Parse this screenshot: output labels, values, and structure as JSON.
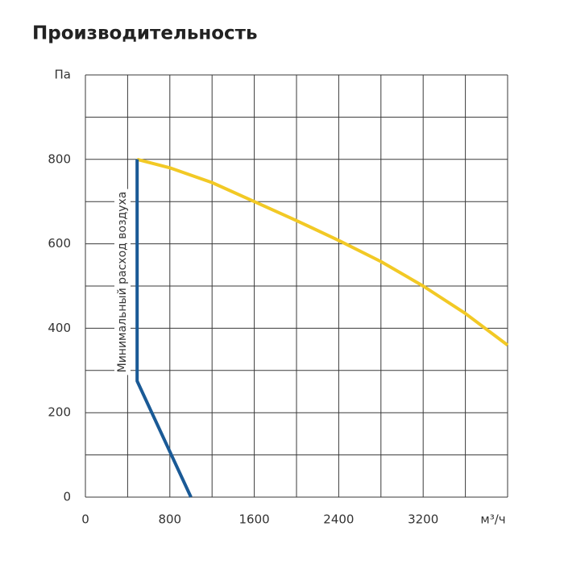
{
  "chart_data": {
    "type": "line",
    "title": "Производительность",
    "y_label": "Па",
    "x_label": "м³/ч",
    "annotation": "Минимальный расход воздуха",
    "xlim": [
      0,
      4000
    ],
    "ylim": [
      0,
      1000
    ],
    "xticks": [
      0,
      800,
      1600,
      2400,
      3200
    ],
    "yticks": [
      0,
      200,
      400,
      600,
      800
    ],
    "xgrid": [
      0,
      400,
      800,
      1200,
      1600,
      2000,
      2400,
      2800,
      3200,
      3600,
      4000
    ],
    "ygrid": [
      0,
      100,
      200,
      300,
      400,
      500,
      600,
      700,
      800,
      900,
      1000
    ],
    "series": [
      {
        "color": "#f2c925",
        "x": [
          490,
          800,
          1200,
          1600,
          2000,
          2400,
          2800,
          3200,
          3600,
          4000
        ],
        "values": [
          800,
          780,
          745,
          700,
          655,
          608,
          558,
          500,
          435,
          360
        ]
      },
      {
        "color": "#1a5a96",
        "x": [
          490,
          490,
          1000
        ],
        "values": [
          800,
          275,
          0
        ]
      }
    ]
  }
}
